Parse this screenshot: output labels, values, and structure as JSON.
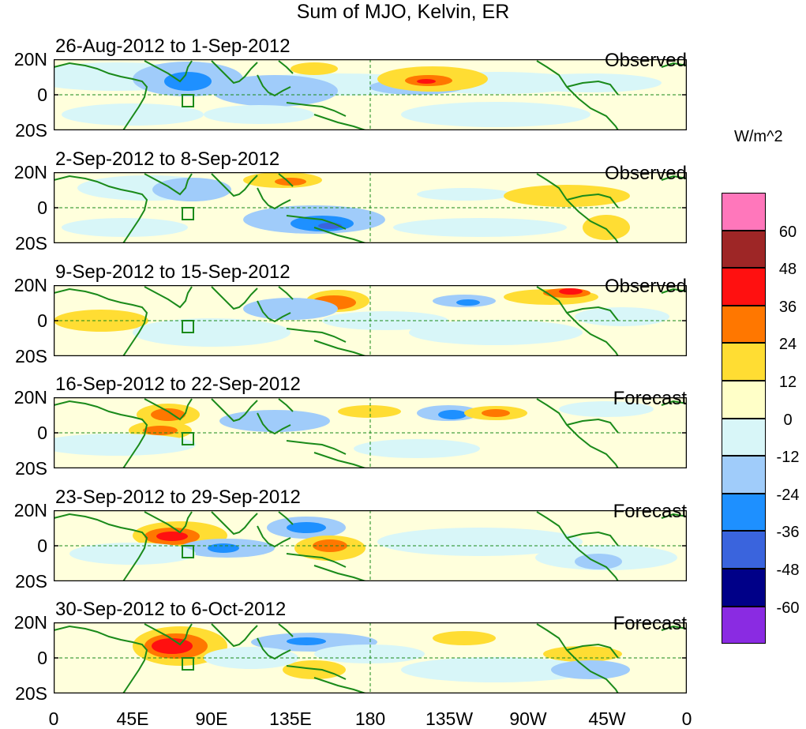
{
  "title": "Sum of MJO, Kelvin, ER",
  "panels": [
    {
      "date": "26-Aug-2012 to 1-Sep-2012",
      "type": "Observed"
    },
    {
      "date": "2-Sep-2012 to 8-Sep-2012",
      "type": "Observed"
    },
    {
      "date": "9-Sep-2012 to 15-Sep-2012",
      "type": "Observed"
    },
    {
      "date": "16-Sep-2012 to 22-Sep-2012",
      "type": "Forecast"
    },
    {
      "date": "23-Sep-2012 to 29-Sep-2012",
      "type": "Forecast"
    },
    {
      "date": "30-Sep-2012 to 6-Oct-2012",
      "type": "Forecast"
    }
  ],
  "y_labels": [
    "20N",
    "0",
    "20S"
  ],
  "x_labels": [
    "0",
    "45E",
    "90E",
    "135E",
    "180",
    "135W",
    "90W",
    "45W",
    "0"
  ],
  "colorbar": {
    "unit": "W/m^2",
    "labels": [
      "60",
      "48",
      "36",
      "24",
      "12",
      "0",
      "-12",
      "-24",
      "-36",
      "-48",
      "-60"
    ],
    "colors": [
      "#ff77bb",
      "#9e2626",
      "#ff1010",
      "#ff7700",
      "#ffdd33",
      "#ffffc8",
      "#d8f6f8",
      "#a0ccfa",
      "#1e90ff",
      "#3a64dd",
      "#000088",
      "#8a2be2"
    ]
  },
  "colors": {
    "coast": "#1a8a1a",
    "ocean": "#ffffdc",
    "frame": "#000000"
  }
}
